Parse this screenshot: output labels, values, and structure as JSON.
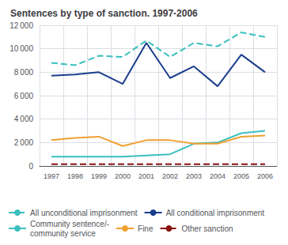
{
  "chart_data": {
    "type": "line",
    "title": "Sentences by type of sanction. 1997-2006",
    "categories": [
      "1997",
      "1998",
      "1999",
      "2000",
      "2001",
      "2002",
      "2003",
      "2004",
      "2005",
      "2006"
    ],
    "series": [
      {
        "name": "All unconditional imprisonment",
        "color": "#3BBFBF",
        "line_style": "dashed",
        "values": [
          8800,
          8600,
          9400,
          9300,
          10700,
          9300,
          10500,
          10200,
          11400,
          11000
        ]
      },
      {
        "name": "All conditional imprisonment",
        "color": "#1A3E8C",
        "line_style": "solid",
        "values": [
          7700,
          7800,
          8000,
          7000,
          10500,
          7500,
          8500,
          6800,
          9500,
          8000
        ]
      },
      {
        "name": "Community sentence/-\ncommunity service",
        "color": "#3BBFBF",
        "line_style": "solid",
        "values": [
          800,
          800,
          800,
          800,
          900,
          1000,
          1900,
          2000,
          2800,
          3000
        ]
      },
      {
        "name": "Fine",
        "color": "#F0A030",
        "line_style": "solid",
        "values": [
          2200,
          2400,
          2500,
          1700,
          2200,
          2200,
          1900,
          1900,
          2500,
          2600
        ]
      },
      {
        "name": "Other sanction",
        "color": "#8B1010",
        "line_style": "dashed",
        "values": [
          150,
          150,
          150,
          150,
          150,
          150,
          150,
          150,
          150,
          150
        ]
      }
    ],
    "ylim": [
      0,
      12000
    ],
    "yticks": [
      0,
      {
        "value": 2000,
        "label": "2 000"
      },
      {
        "value": 4000,
        "label": "4 000"
      },
      {
        "value": 6000,
        "label": "6 000"
      },
      {
        "value": 8000,
        "label": "8 000"
      },
      {
        "value": 10000,
        "label": "10 000"
      },
      {
        "value": 12000,
        "label": "12 000"
      }
    ],
    "grid": true,
    "legend": "bottom"
  }
}
